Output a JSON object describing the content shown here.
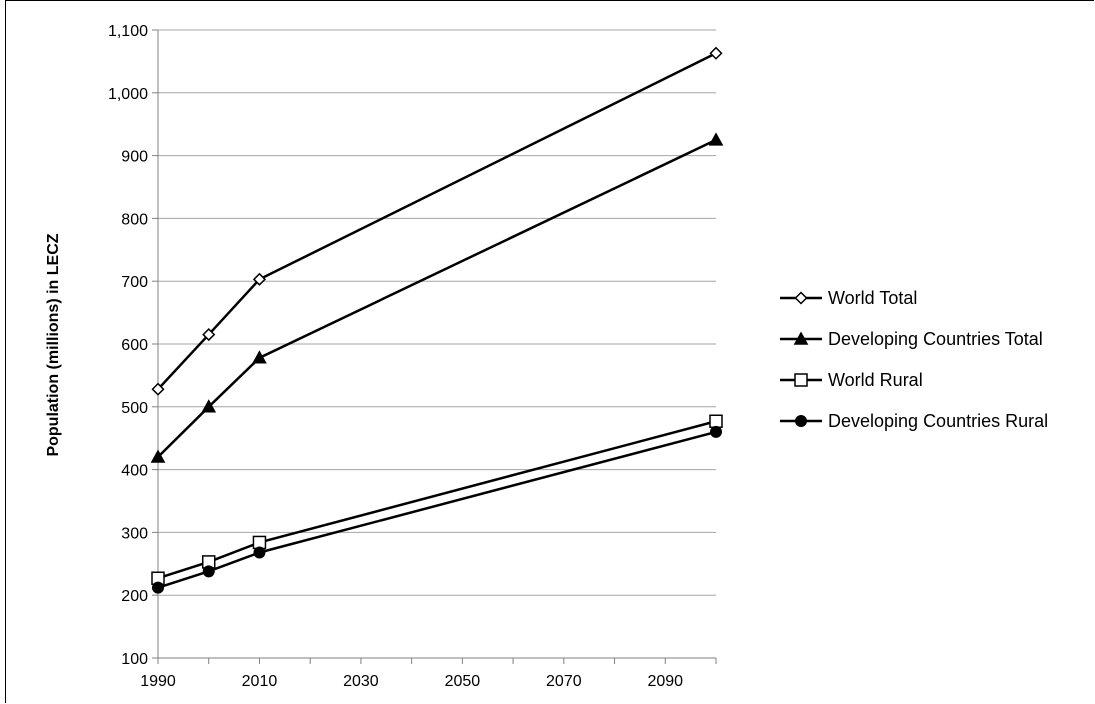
{
  "chart_data": {
    "type": "line",
    "title": "",
    "xlabel": "",
    "ylabel": "Population (millions) in LECZ",
    "xlim": [
      1990,
      2100
    ],
    "ylim": [
      100,
      1100
    ],
    "x_ticks": [
      "1990",
      "2010",
      "2030",
      "2050",
      "2070",
      "2090"
    ],
    "y_ticks": [
      "100",
      "200",
      "300",
      "400",
      "500",
      "600",
      "700",
      "800",
      "900",
      "1,000",
      "1,100"
    ],
    "grid": "horizontal",
    "legend_position": "right",
    "x": [
      1990,
      2000,
      2010,
      2100
    ],
    "series": [
      {
        "name": "World Total",
        "marker": "diamond-open",
        "values": [
          528,
          615,
          703,
          1063
        ]
      },
      {
        "name": "Developing Countries Total",
        "marker": "triangle-filled",
        "values": [
          420,
          500,
          578,
          925
        ]
      },
      {
        "name": "World Rural",
        "marker": "square-open",
        "values": [
          227,
          253,
          284,
          477
        ]
      },
      {
        "name": "Developing Countries Rural",
        "marker": "circle-filled",
        "values": [
          212,
          238,
          268,
          460
        ]
      }
    ],
    "colors": {
      "line": "#000000",
      "grid": "#a6a6a6",
      "axis": "#808080"
    }
  }
}
